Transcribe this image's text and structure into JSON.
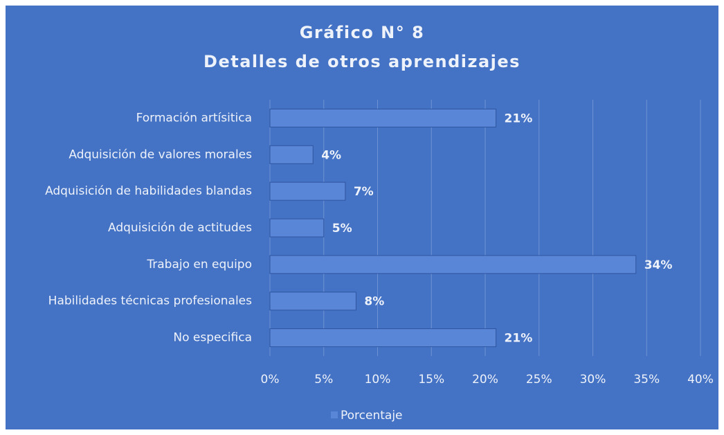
{
  "chart_data": {
    "type": "hbar",
    "title": "Gráfico N° 8",
    "subtitle": "Detalles de otros aprendizajes",
    "categories": [
      "Formación artísitica",
      "Adquisición de valores morales",
      "Adquisición de habilidades blandas",
      "Adquisición de actitudes",
      "Trabajo en equipo",
      "Habilidades técnicas profesionales",
      "No especifica"
    ],
    "series": [
      {
        "name": "Porcentaje",
        "color": "#5a86d8",
        "values": [
          21,
          4,
          7,
          5,
          34,
          8,
          21
        ],
        "value_labels": [
          "21%",
          "4%",
          "7%",
          "5%",
          "34%",
          "8%",
          "21%"
        ]
      }
    ],
    "xlim": [
      0,
      40
    ],
    "xticks": [
      {
        "value": 0,
        "label": "0%"
      },
      {
        "value": 5,
        "label": "5%"
      },
      {
        "value": 10,
        "label": "10%"
      },
      {
        "value": 15,
        "label": "15%"
      },
      {
        "value": 20,
        "label": "20%"
      },
      {
        "value": 25,
        "label": "25%"
      },
      {
        "value": 30,
        "label": "30%"
      },
      {
        "value": 35,
        "label": "35%"
      },
      {
        "value": 40,
        "label": "40%"
      }
    ],
    "grid": true,
    "legend": "bottom"
  }
}
